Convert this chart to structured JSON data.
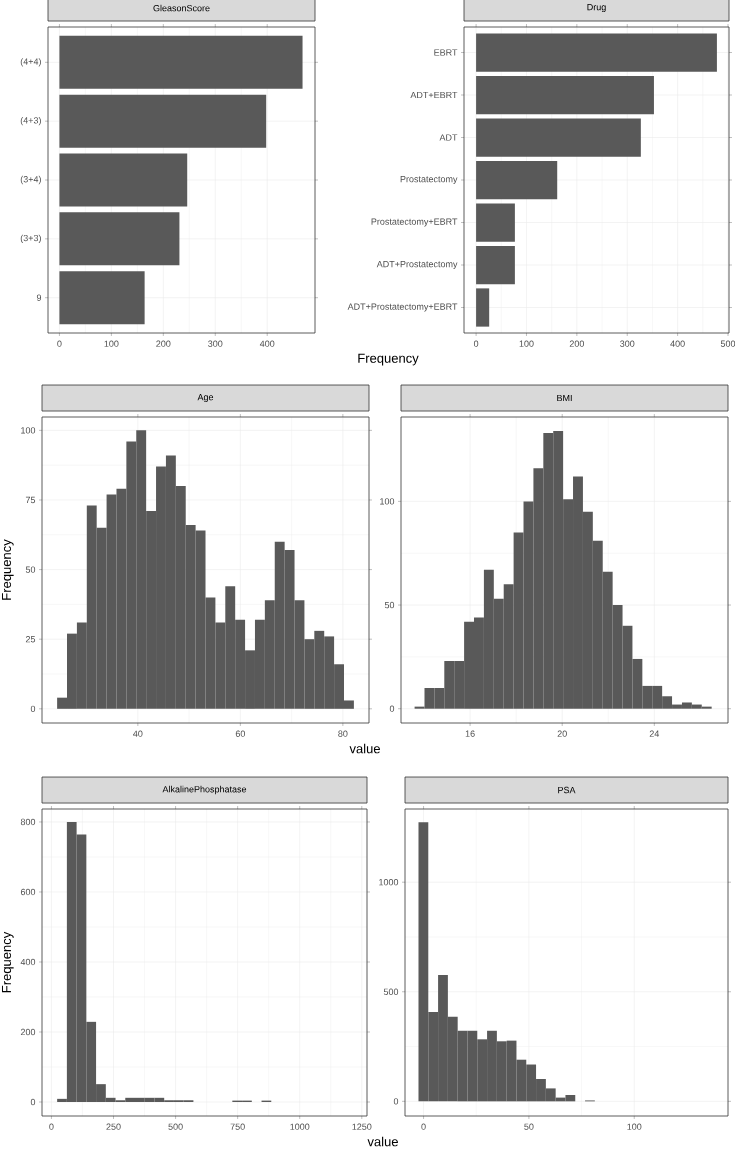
{
  "chart_data": [
    {
      "type": "bar",
      "orientation": "horizontal",
      "title": "GleasonScore",
      "xlabel": "Frequency",
      "categories": [
        "(4+4)",
        "(4+3)",
        "(3+4)",
        "(3+3)",
        "9"
      ],
      "values": [
        468,
        398,
        246,
        231,
        164
      ],
      "color": "#595959",
      "xlim": [
        -22,
        492
      ],
      "xticks": [
        0,
        100,
        200,
        300,
        400
      ],
      "grid": true
    },
    {
      "type": "bar",
      "orientation": "horizontal",
      "title": "Drug",
      "categories": [
        "EBRT",
        "ADT+EBRT",
        "ADT",
        "Prostatectomy",
        "Prostatectomy+EBRT",
        "ADT+Prostatectomy",
        "ADT+Prostatectomy+EBRT"
      ],
      "values": [
        478,
        353,
        327,
        161,
        77,
        77,
        26
      ],
      "color": "#595959",
      "xlim": [
        -24,
        502
      ],
      "xticks": [
        0,
        100,
        200,
        300,
        400,
        500
      ],
      "grid": true
    },
    {
      "type": "histogram",
      "title": "Age",
      "xlabel": "value",
      "ylabel": "Frequency",
      "bins": [
        24.25,
        26.18,
        28.11,
        30.04,
        31.97,
        33.9,
        35.83,
        37.76,
        39.69,
        41.62,
        43.55,
        45.48,
        47.41,
        49.34,
        51.27,
        53.2,
        55.13,
        57.06,
        58.99,
        60.92,
        62.85,
        64.78,
        66.71,
        68.64,
        70.57,
        72.5,
        74.43,
        76.36,
        78.29,
        80.22,
        82.15
      ],
      "values": [
        4,
        27,
        31,
        73,
        65,
        77,
        79,
        96,
        100,
        71,
        87,
        91,
        80,
        66,
        64,
        40,
        31,
        44,
        32,
        21,
        32,
        39,
        60,
        57,
        39,
        25,
        28,
        26,
        16,
        3
      ],
      "color": "#595959",
      "xlim": [
        21.3,
        85.1
      ],
      "ylim": [
        -5.1,
        104.8
      ],
      "xticks": [
        40,
        60,
        80
      ],
      "yticks": [
        0,
        25,
        50,
        75,
        100
      ],
      "grid": true
    },
    {
      "type": "histogram",
      "title": "BMI",
      "bins": [
        13.59,
        14.02,
        14.45,
        14.88,
        15.31,
        15.74,
        16.17,
        16.6,
        17.03,
        17.46,
        17.89,
        18.32,
        18.75,
        19.18,
        19.61,
        20.04,
        20.47,
        20.9,
        21.33,
        21.76,
        22.19,
        22.62,
        23.05,
        23.48,
        23.91,
        24.34,
        24.77,
        25.2,
        25.63,
        26.06,
        26.49
      ],
      "values": [
        1,
        10,
        10,
        23,
        23,
        42,
        44,
        67,
        53,
        60,
        85,
        100,
        116,
        133,
        134,
        101,
        112,
        95,
        81,
        66,
        50,
        40,
        24,
        11,
        11,
        6,
        2,
        3,
        2,
        1
      ],
      "color": "#595959",
      "xlim": [
        13.0,
        27.2
      ],
      "ylim": [
        -6.9,
        140.7
      ],
      "xticks": [
        16,
        20,
        24
      ],
      "yticks": [
        0,
        50,
        100
      ],
      "grid": true
    },
    {
      "type": "histogram",
      "title": "AlkalinePhosphatase",
      "xlabel": "value",
      "ylabel": "Frequency",
      "bins": [
        23,
        62.2,
        101.4,
        140.6,
        179.8,
        219,
        258.2,
        297.4,
        336.6,
        375.8,
        415,
        454.2,
        493.4,
        532.6,
        571.8,
        611,
        650.2,
        689.4,
        728.6,
        767.8,
        807,
        846.2,
        885.4,
        924.6,
        963.8,
        1003,
        1042.2,
        1081.4,
        1120.6,
        1159.8,
        1199
      ],
      "values": [
        9,
        800,
        764,
        229,
        51,
        12,
        5,
        12,
        12,
        12,
        12,
        5,
        5,
        5,
        0,
        0,
        0,
        0,
        4,
        4,
        0,
        4,
        0,
        0,
        0,
        0,
        0,
        0,
        0,
        0
      ],
      "color": "#595959",
      "xlim": [
        -38,
        1271
      ],
      "ylim": [
        -40,
        837
      ],
      "xticks": [
        0,
        250,
        500,
        750,
        1000,
        1250
      ],
      "yticks": [
        0,
        200,
        400,
        600,
        800
      ],
      "grid": true
    },
    {
      "type": "histogram",
      "title": "PSA",
      "bins": [
        -2.4,
        2.25,
        6.9,
        11.55,
        16.2,
        20.85,
        25.5,
        30.15,
        34.8,
        39.45,
        44.1,
        48.75,
        53.4,
        58.05,
        62.7,
        67.35,
        72,
        76.65,
        81.3,
        85.95,
        90.6,
        95.25,
        99.9,
        104.55,
        109.2,
        113.85,
        118.5,
        123.15,
        127.8,
        132.45,
        137.1
      ],
      "values": [
        1274,
        408,
        576,
        386,
        322,
        322,
        283,
        322,
        274,
        277,
        190,
        168,
        102,
        59,
        17,
        29,
        0,
        4,
        0,
        0,
        0,
        0,
        0,
        0,
        0,
        0,
        0,
        0,
        0,
        0
      ],
      "color": "#595959",
      "xlim": [
        -8.8,
        144.5
      ],
      "ylim": [
        -67,
        1334
      ],
      "xticks": [
        0,
        50,
        100
      ],
      "yticks": [
        0,
        500,
        1000
      ],
      "grid": true
    }
  ]
}
